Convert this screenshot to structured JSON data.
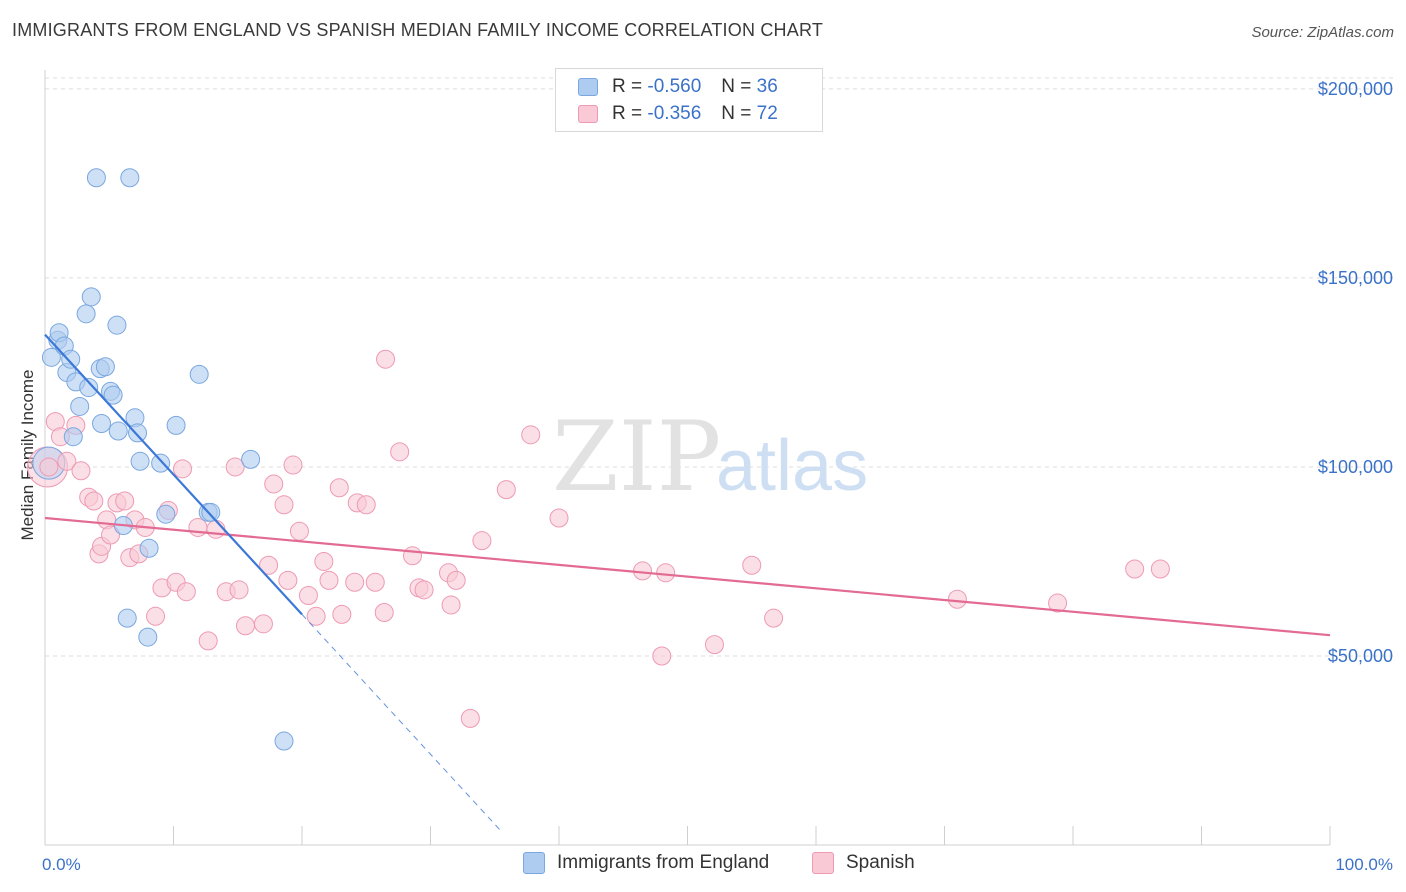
{
  "title": "IMMIGRANTS FROM ENGLAND VS SPANISH MEDIAN FAMILY INCOME CORRELATION CHART",
  "source": "Source: ZipAtlas.com",
  "watermark": {
    "zip": "ZIP",
    "atlas": "atlas"
  },
  "legend_top": [
    {
      "r_label": "R =",
      "r_value": "-0.560",
      "n_label": "N =",
      "n_value": "36",
      "color": "#aecbf0",
      "border": "#7aa7df"
    },
    {
      "r_label": "R =",
      "r_value": "-0.356",
      "n_label": "N =",
      "n_value": "72",
      "color": "#f9c9d6",
      "border": "#ee9ab3"
    }
  ],
  "legend_bottom": [
    {
      "label": "Immigrants from England",
      "color": "#aecbf0",
      "border": "#7aa7df"
    },
    {
      "label": "Spanish",
      "color": "#f9c9d6",
      "border": "#ee9ab3"
    }
  ],
  "chart_data": {
    "type": "scatter",
    "ylabel": "Median Family Income",
    "xlim": [
      0,
      100
    ],
    "ylim": [
      0,
      205000
    ],
    "x_tick_labels": [
      "0.0%",
      "100.0%"
    ],
    "y_ticks": [
      {
        "value": 50000,
        "label": "$50,000"
      },
      {
        "value": 100000,
        "label": "$100,000"
      },
      {
        "value": 150000,
        "label": "$150,000"
      },
      {
        "value": 200000,
        "label": "$200,000"
      }
    ],
    "grid": "horizontal-dashed",
    "series": [
      {
        "name": "Immigrants from England",
        "color": "#aecbf0",
        "stroke": "#7aa7df",
        "line_color": "#3b78d8",
        "trend": {
          "x0": 0.0,
          "y0": 135000,
          "x1": 20.0,
          "y1": 61000,
          "dash_x_end": 35.5
        },
        "points": [
          [
            0.5,
            129000
          ],
          [
            1.0,
            133500
          ],
          [
            1.1,
            135500
          ],
          [
            1.5,
            132000
          ],
          [
            1.7,
            125000
          ],
          [
            2.0,
            128500
          ],
          [
            2.2,
            108000
          ],
          [
            2.4,
            122500
          ],
          [
            2.7,
            116000
          ],
          [
            3.2,
            140500
          ],
          [
            3.4,
            121000
          ],
          [
            3.6,
            145000
          ],
          [
            4.0,
            176500
          ],
          [
            4.3,
            126000
          ],
          [
            4.4,
            111500
          ],
          [
            4.7,
            126500
          ],
          [
            5.1,
            120000
          ],
          [
            5.3,
            119000
          ],
          [
            5.6,
            137500
          ],
          [
            5.7,
            109500
          ],
          [
            6.1,
            84500
          ],
          [
            6.4,
            60000
          ],
          [
            6.6,
            176500
          ],
          [
            7.0,
            113000
          ],
          [
            7.2,
            109000
          ],
          [
            7.4,
            101500
          ],
          [
            8.0,
            55000
          ],
          [
            8.1,
            78500
          ],
          [
            9.0,
            101000
          ],
          [
            9.4,
            87500
          ],
          [
            10.2,
            111000
          ],
          [
            12.0,
            124500
          ],
          [
            12.7,
            88000
          ],
          [
            12.9,
            88000
          ],
          [
            16.0,
            102000
          ],
          [
            18.6,
            27500
          ]
        ]
      },
      {
        "name": "Spanish",
        "color": "#f9c9d6",
        "stroke": "#ee9ab3",
        "line_color": "#e36a93",
        "trend": {
          "x0": 0.0,
          "y0": 86500,
          "x1": 100.0,
          "y1": 55500
        },
        "points": [
          [
            0.3,
            100000
          ],
          [
            0.8,
            112000
          ],
          [
            1.2,
            108000
          ],
          [
            1.7,
            101500
          ],
          [
            2.4,
            111000
          ],
          [
            2.8,
            99000
          ],
          [
            3.4,
            92000
          ],
          [
            3.8,
            91000
          ],
          [
            4.2,
            77000
          ],
          [
            4.4,
            79000
          ],
          [
            4.8,
            86000
          ],
          [
            5.1,
            82000
          ],
          [
            5.6,
            90500
          ],
          [
            6.2,
            91000
          ],
          [
            6.6,
            76000
          ],
          [
            7.0,
            86000
          ],
          [
            7.3,
            77000
          ],
          [
            7.8,
            84000
          ],
          [
            8.6,
            60500
          ],
          [
            9.1,
            68000
          ],
          [
            9.6,
            88500
          ],
          [
            10.2,
            69500
          ],
          [
            10.7,
            99500
          ],
          [
            11.0,
            67000
          ],
          [
            11.9,
            84000
          ],
          [
            12.7,
            54000
          ],
          [
            13.3,
            83500
          ],
          [
            14.1,
            67000
          ],
          [
            14.8,
            100000
          ],
          [
            15.1,
            67500
          ],
          [
            15.6,
            58000
          ],
          [
            17.0,
            58500
          ],
          [
            17.4,
            74000
          ],
          [
            17.8,
            95500
          ],
          [
            18.6,
            90000
          ],
          [
            18.9,
            70000
          ],
          [
            19.3,
            100500
          ],
          [
            19.8,
            83000
          ],
          [
            20.5,
            66000
          ],
          [
            21.1,
            60500
          ],
          [
            21.7,
            75000
          ],
          [
            22.1,
            70000
          ],
          [
            22.9,
            94500
          ],
          [
            23.1,
            61000
          ],
          [
            24.1,
            69500
          ],
          [
            24.3,
            90500
          ],
          [
            25.0,
            90000
          ],
          [
            25.7,
            69500
          ],
          [
            26.4,
            61500
          ],
          [
            26.5,
            128500
          ],
          [
            27.6,
            104000
          ],
          [
            28.6,
            76500
          ],
          [
            29.1,
            68000
          ],
          [
            29.5,
            67500
          ],
          [
            31.4,
            72000
          ],
          [
            31.6,
            63500
          ],
          [
            32.0,
            70000
          ],
          [
            33.1,
            33500
          ],
          [
            34.0,
            80500
          ],
          [
            35.9,
            94000
          ],
          [
            37.8,
            108500
          ],
          [
            40.0,
            86500
          ],
          [
            46.5,
            72500
          ],
          [
            48.0,
            50000
          ],
          [
            48.3,
            72000
          ],
          [
            52.1,
            53000
          ],
          [
            55.0,
            74000
          ],
          [
            56.7,
            60000
          ],
          [
            71.0,
            65000
          ],
          [
            78.8,
            64000
          ],
          [
            84.8,
            73000
          ],
          [
            86.8,
            73000
          ]
        ]
      }
    ]
  }
}
